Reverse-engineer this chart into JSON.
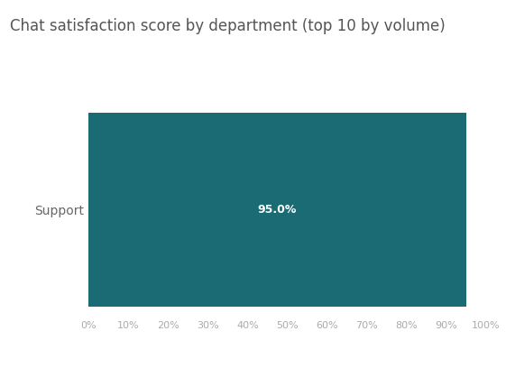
{
  "title": "Chat satisfaction score by department (top 10 by volume)",
  "departments": [
    "Support"
  ],
  "values": [
    95.0
  ],
  "bar_color": "#1a6b74",
  "label_color": "#ffffff",
  "label_fontsize": 9,
  "label_fontweight": "bold",
  "title_fontsize": 12,
  "title_color": "#555555",
  "tick_label_color": "#aaaaaa",
  "ytick_label_color": "#666666",
  "background_color": "#ffffff",
  "xlim": [
    0,
    100
  ],
  "xticks": [
    0,
    10,
    20,
    30,
    40,
    50,
    60,
    70,
    80,
    90,
    100
  ],
  "xtick_labels": [
    "0%",
    "10%",
    "20%",
    "30%",
    "40%",
    "50%",
    "60%",
    "70%",
    "80%",
    "90%",
    "100%"
  ],
  "bar_height": 0.85
}
